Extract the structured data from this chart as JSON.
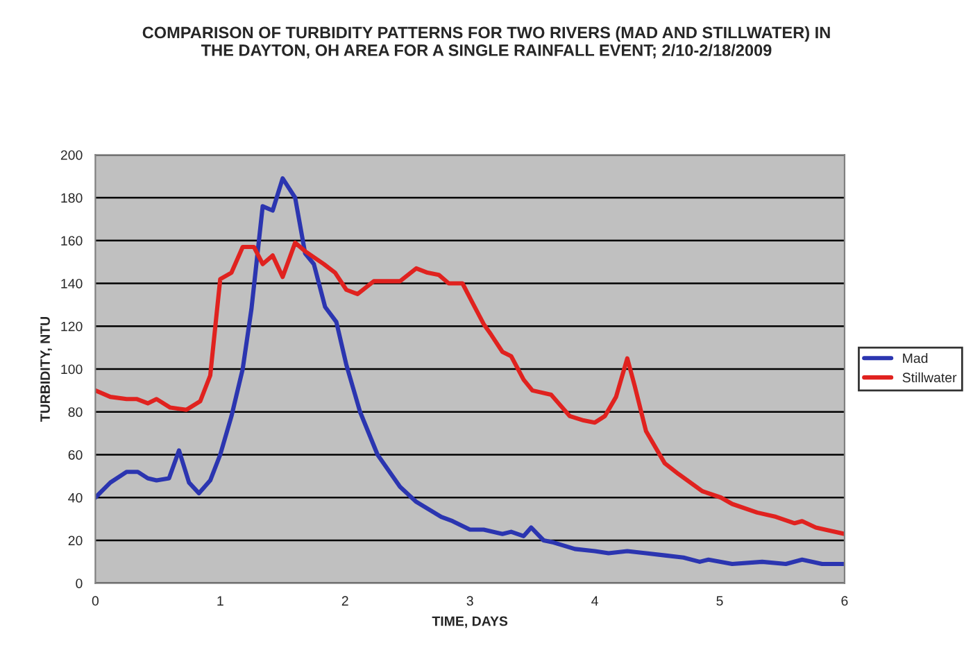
{
  "chart_data": {
    "type": "line",
    "title": "COMPARISON OF TURBIDITY PATTERNS FOR TWO RIVERS (MAD AND STILLWATER) IN\nTHE DAYTON, OH AREA FOR A SINGLE RAINFALL EVENT; 2/10-2/18/2009",
    "xlabel": "TIME, DAYS",
    "ylabel": "TURBIDITY, NTU",
    "xlim": [
      0,
      6
    ],
    "xticks": [
      0,
      1,
      2,
      3,
      4,
      5,
      6
    ],
    "ylim": [
      0,
      200
    ],
    "yticks": [
      0,
      20,
      40,
      60,
      80,
      100,
      120,
      140,
      160,
      180,
      200
    ],
    "grid": "y",
    "legend": "right",
    "marker": "none",
    "line_style": "solid",
    "series": [
      {
        "name": "Mad",
        "color": "#2b35b0",
        "x": [
          0,
          0.12,
          0.25,
          0.34,
          0.42,
          0.49,
          0.59,
          0.67,
          0.75,
          0.83,
          0.92,
          1.0,
          1.09,
          1.18,
          1.25,
          1.34,
          1.42,
          1.5,
          1.6,
          1.68,
          1.75,
          1.84,
          1.93,
          2.01,
          2.12,
          2.26,
          2.44,
          2.57,
          2.77,
          2.86,
          3.0,
          3.11,
          3.26,
          3.33,
          3.43,
          3.49,
          3.59,
          3.67,
          3.84,
          4.0,
          4.11,
          4.26,
          4.41,
          4.56,
          4.71,
          4.84,
          4.91,
          5.1,
          5.34,
          5.53,
          5.66,
          5.82,
          6.0
        ],
        "values": [
          40,
          47,
          52,
          52,
          49,
          48,
          49,
          62,
          47,
          42,
          48,
          60,
          78,
          100,
          128,
          176,
          174,
          189,
          180,
          154,
          149,
          129,
          122,
          102,
          80,
          60,
          45,
          38,
          31,
          29,
          25,
          25,
          23,
          24,
          22,
          26,
          20,
          19,
          16,
          15,
          14,
          15,
          14,
          13,
          12,
          10,
          11,
          9,
          10,
          9,
          11,
          9,
          9
        ]
      },
      {
        "name": "Stillwater",
        "color": "#e0221f",
        "x": [
          0,
          0.12,
          0.25,
          0.33,
          0.42,
          0.49,
          0.6,
          0.73,
          0.84,
          0.92,
          1.0,
          1.09,
          1.18,
          1.27,
          1.34,
          1.42,
          1.5,
          1.6,
          1.68,
          1.83,
          1.92,
          2.01,
          2.1,
          2.23,
          2.44,
          2.57,
          2.66,
          2.75,
          2.83,
          2.94,
          3.02,
          3.11,
          3.17,
          3.26,
          3.33,
          3.43,
          3.5,
          3.65,
          3.8,
          3.91,
          4.0,
          4.08,
          4.17,
          4.26,
          4.32,
          4.41,
          4.56,
          4.67,
          4.86,
          5.01,
          5.1,
          5.3,
          5.45,
          5.6,
          5.66,
          5.77,
          6.0
        ],
        "values": [
          90,
          87,
          86,
          86,
          84,
          86,
          82,
          81,
          85,
          97,
          142,
          145,
          157,
          157,
          149,
          153,
          143,
          159,
          155,
          149,
          145,
          137,
          135,
          141,
          141,
          147,
          145,
          144,
          140,
          140,
          131,
          121,
          116,
          108,
          106,
          95,
          90,
          88,
          78,
          76,
          75,
          78,
          87,
          105,
          92,
          71,
          56,
          51,
          43,
          40,
          37,
          33,
          31,
          28,
          29,
          26,
          23
        ]
      }
    ]
  }
}
